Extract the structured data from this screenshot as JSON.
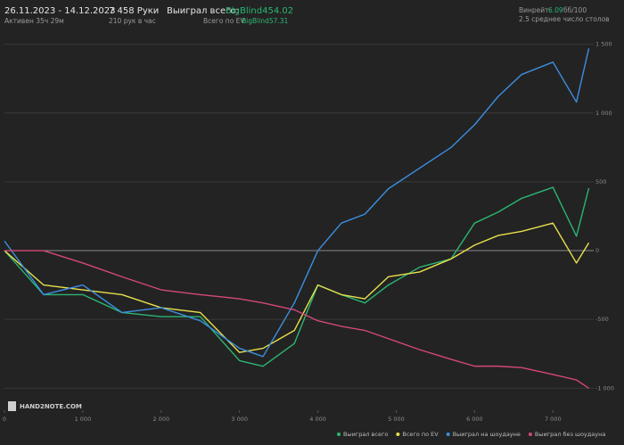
{
  "header": {
    "period": "26.11.2023 - 14.12.2023",
    "active": "Активен 35ч 29м",
    "hands": "7 458 Руки",
    "hands_per_hour": "210 рук в час",
    "won_label": "Выиграл всего:",
    "won_value": "BigBlind454.02",
    "ev_label": "Всего по EV:",
    "ev_value": "BigBlind57.31",
    "winrate_label": "Винрейт:",
    "winrate_value": "6.09",
    "winrate_unit": "бб/100",
    "tables": "2.5 среднее число столов",
    "logo": "HAND2NOTE.COM"
  },
  "chart_data": {
    "type": "line",
    "x": [
      0,
      500,
      1000,
      1500,
      2000,
      2500,
      3000,
      3300,
      3700,
      4000,
      4300,
      4600,
      4900,
      5300,
      5700,
      6000,
      6300,
      6600,
      7000,
      7300,
      7458
    ],
    "series": [
      {
        "name": "Выиграл всего",
        "color": "#2bb673",
        "values": [
          0,
          -320,
          -320,
          -450,
          -480,
          -480,
          -800,
          -840,
          -675,
          -250,
          -320,
          -380,
          -250,
          -120,
          -60,
          200,
          280,
          380,
          460,
          105,
          454
        ]
      },
      {
        "name": "Всего по EV",
        "color": "#e8e04c",
        "values": [
          0,
          -250,
          -285,
          -320,
          -415,
          -450,
          -740,
          -710,
          -580,
          -250,
          -320,
          -350,
          -190,
          -155,
          -60,
          40,
          110,
          140,
          200,
          -90,
          57
        ]
      },
      {
        "name": "Выиграл на шоудауне",
        "color": "#3b8fe0",
        "values": [
          70,
          -320,
          -250,
          -450,
          -415,
          -510,
          -710,
          -770,
          -380,
          0,
          200,
          265,
          450,
          600,
          750,
          915,
          1120,
          1280,
          1370,
          1080,
          1470
        ]
      },
      {
        "name": "Выиграл без шоудауна",
        "color": "#d4477c",
        "values": [
          0,
          0,
          -90,
          -190,
          -285,
          -320,
          -350,
          -380,
          -430,
          -510,
          -550,
          -580,
          -640,
          -720,
          -790,
          -840,
          -840,
          -850,
          -900,
          -940,
          -1000
        ]
      }
    ],
    "xlim": [
      0,
      7520
    ],
    "ylim": [
      -1160,
      1530
    ],
    "xticks": [
      0,
      {
        "value": 1000,
        "label": "1 000"
      },
      {
        "value": 2000,
        "label": "2 000"
      },
      {
        "value": 3000,
        "label": "3 000"
      },
      {
        "value": 4000,
        "label": "4 000"
      },
      {
        "value": 5000,
        "label": "5 000"
      },
      {
        "value": 6000,
        "label": "6 000"
      },
      {
        "value": 7000,
        "label": "7 000"
      }
    ],
    "yticks": [
      {
        "value": -1000,
        "label": "-1 000"
      },
      -500,
      0,
      500,
      {
        "value": 1000,
        "label": "1 000"
      },
      {
        "value": 1500,
        "label": "1 500"
      }
    ],
    "grid": true
  }
}
